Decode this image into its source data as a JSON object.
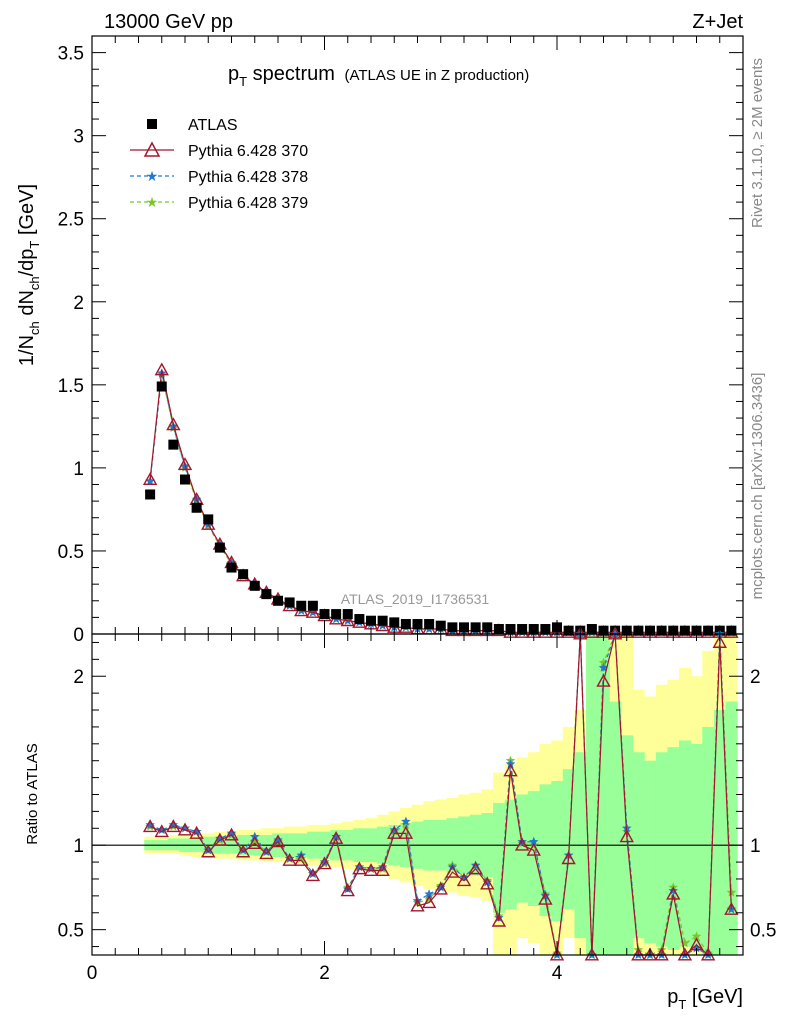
{
  "header": {
    "left": "13000 GeV pp",
    "right": "Z+Jet"
  },
  "title": {
    "main": "p",
    "main_sub": "T",
    "main_rest": " spectrum",
    "small": "(ATLAS UE in Z production)"
  },
  "side_text": {
    "top": "Rivet 3.1.10, ≥ 2M events",
    "bottom": "mcplots.cern.ch [arXiv:1306.3436]"
  },
  "watermark": "ATLAS_2019_I1736531",
  "ylabel_top": {
    "a": "1/N",
    "a_sub": "ch",
    "b": " dN",
    "b_sub": "ch",
    "c": "/dp",
    "c_sub": "T",
    "d": " [GeV]"
  },
  "ylabel_bottom": "Ratio to ATLAS",
  "xlabel": {
    "a": "p",
    "a_sub": "T",
    "b": " [GeV]"
  },
  "legend": [
    {
      "label": "ATLAS",
      "color": "#000000",
      "marker": "square"
    },
    {
      "label": "Pythia 6.428 370",
      "color": "#a3162e",
      "marker": "triangle-open"
    },
    {
      "label": "Pythia 6.428 378",
      "color": "#1f78d1",
      "marker": "star"
    },
    {
      "label": "Pythia 6.428 379",
      "color": "#7ac72b",
      "marker": "star"
    }
  ],
  "chart_data": {
    "type": "scatter",
    "x_range": [
      0,
      5.6
    ],
    "x_ticks": [
      "0",
      "2",
      "4"
    ],
    "top": {
      "ylim": [
        0,
        3.6
      ],
      "y_ticks": [
        "0",
        "0.5",
        "1",
        "1.5",
        "2",
        "2.5",
        "3",
        "3.5"
      ],
      "x": [
        0.5,
        0.6,
        0.7,
        0.8,
        0.9,
        1.0,
        1.1,
        1.2,
        1.3,
        1.4,
        1.5,
        1.6,
        1.7,
        1.8,
        1.9,
        2.0,
        2.1,
        2.2,
        2.3,
        2.4,
        2.5,
        2.6,
        2.7,
        2.8,
        2.9,
        3.0,
        3.1,
        3.2,
        3.3,
        3.4,
        3.5,
        3.6,
        3.7,
        3.8,
        3.9,
        4.0,
        4.1,
        4.2,
        4.3,
        4.4,
        4.5,
        4.6,
        4.7,
        4.8,
        4.9,
        5.0,
        5.1,
        5.2,
        5.3,
        5.4,
        5.5
      ],
      "atlas": [
        0.84,
        1.49,
        1.14,
        0.93,
        0.76,
        0.69,
        0.52,
        0.4,
        0.36,
        0.29,
        0.24,
        0.2,
        0.19,
        0.17,
        0.17,
        0.12,
        0.12,
        0.12,
        0.09,
        0.08,
        0.08,
        0.07,
        0.06,
        0.06,
        0.06,
        0.05,
        0.04,
        0.04,
        0.04,
        0.04,
        0.03,
        0.03,
        0.03,
        0.03,
        0.03,
        0.04,
        0.02,
        0.02,
        0.03,
        0.02,
        0.02,
        0.02,
        0.02,
        0.02,
        0.02,
        0.02,
        0.02,
        0.02,
        0.02,
        0.02,
        0.02
      ],
      "series": [
        {
          "name": "Pythia 6.428 370",
          "values": [
            0.93,
            1.59,
            1.26,
            1.02,
            0.81,
            0.66,
            0.54,
            0.43,
            0.35,
            0.3,
            0.25,
            0.21,
            0.17,
            0.14,
            0.13,
            0.11,
            0.09,
            0.08,
            0.07,
            0.06,
            0.05,
            0.04,
            0.04,
            0.03,
            0.03,
            0.03,
            0.02,
            0.02,
            0.02,
            0.02,
            0.02,
            0.01,
            0.01,
            0.01,
            0.01,
            0.01,
            0.01,
            0.01,
            0.01,
            0.01,
            0.01,
            0.01,
            0.01,
            0.01,
            0.01,
            0.01,
            0.01,
            0.01,
            0.01,
            0.01,
            0.01
          ]
        },
        {
          "name": "Pythia 6.428 378",
          "values": [
            0.92,
            1.57,
            1.25,
            1.01,
            0.81,
            0.66,
            0.54,
            0.43,
            0.35,
            0.3,
            0.25,
            0.21,
            0.17,
            0.14,
            0.13,
            0.11,
            0.09,
            0.08,
            0.07,
            0.06,
            0.05,
            0.04,
            0.04,
            0.03,
            0.03,
            0.03,
            0.02,
            0.02,
            0.02,
            0.02,
            0.02,
            0.01,
            0.01,
            0.01,
            0.01,
            0.01,
            0.01,
            0.01,
            0.01,
            0.01,
            0.01,
            0.01,
            0.01,
            0.01,
            0.01,
            0.01,
            0.01,
            0.01,
            0.01,
            0.01,
            0.01
          ]
        },
        {
          "name": "Pythia 6.428 379",
          "values": [
            0.92,
            1.56,
            1.24,
            1.0,
            0.8,
            0.65,
            0.53,
            0.42,
            0.35,
            0.29,
            0.25,
            0.21,
            0.17,
            0.14,
            0.13,
            0.11,
            0.09,
            0.08,
            0.07,
            0.06,
            0.05,
            0.04,
            0.04,
            0.03,
            0.03,
            0.03,
            0.02,
            0.02,
            0.02,
            0.02,
            0.02,
            0.01,
            0.01,
            0.01,
            0.01,
            0.01,
            0.01,
            0.01,
            0.01,
            0.01,
            0.01,
            0.01,
            0.01,
            0.01,
            0.01,
            0.01,
            0.01,
            0.01,
            0.01,
            0.01,
            0.01
          ]
        }
      ]
    },
    "ratio": {
      "ylim": [
        0.35,
        2.25
      ],
      "y_ticks": [
        "0.5",
        "1",
        "2"
      ],
      "y_tick_values": [
        0.5,
        1,
        2
      ],
      "band_outer": [
        [
          0.95,
          1.05
        ],
        [
          0.95,
          1.05
        ],
        [
          0.95,
          1.06
        ],
        [
          0.94,
          1.06
        ],
        [
          0.93,
          1.07
        ],
        [
          0.93,
          1.07
        ],
        [
          0.92,
          1.08
        ],
        [
          0.92,
          1.08
        ],
        [
          0.91,
          1.09
        ],
        [
          0.91,
          1.09
        ],
        [
          0.9,
          1.1
        ],
        [
          0.9,
          1.1
        ],
        [
          0.89,
          1.11
        ],
        [
          0.89,
          1.11
        ],
        [
          0.88,
          1.12
        ],
        [
          0.88,
          1.12
        ],
        [
          0.87,
          1.13
        ],
        [
          0.86,
          1.14
        ],
        [
          0.85,
          1.15
        ],
        [
          0.84,
          1.16
        ],
        [
          0.82,
          1.18
        ],
        [
          0.8,
          1.2
        ],
        [
          0.78,
          1.22
        ],
        [
          0.76,
          1.24
        ],
        [
          0.74,
          1.26
        ],
        [
          0.73,
          1.27
        ],
        [
          0.72,
          1.28
        ],
        [
          0.7,
          1.3
        ],
        [
          0.69,
          1.31
        ],
        [
          0.67,
          1.33
        ],
        [
          0.35,
          1.43
        ],
        [
          0.35,
          1.48
        ],
        [
          0.45,
          1.52
        ],
        [
          0.42,
          1.55
        ],
        [
          0.35,
          1.6
        ],
        [
          0.35,
          1.62
        ],
        [
          0.45,
          1.7
        ],
        [
          0.35,
          1.8
        ],
        [
          0.35,
          2.25
        ],
        [
          0.35,
          2.25
        ],
        [
          0.35,
          2.25
        ],
        [
          0.35,
          2.25
        ],
        [
          0.35,
          1.92
        ],
        [
          0.35,
          1.88
        ],
        [
          0.35,
          1.95
        ],
        [
          0.35,
          1.98
        ],
        [
          0.35,
          2.05
        ],
        [
          0.35,
          2.0
        ],
        [
          0.35,
          2.15
        ],
        [
          0.35,
          2.25
        ],
        [
          0.35,
          2.25
        ]
      ],
      "band_inner": [
        [
          0.97,
          1.03
        ],
        [
          0.97,
          1.03
        ],
        [
          0.97,
          1.04
        ],
        [
          0.96,
          1.04
        ],
        [
          0.96,
          1.04
        ],
        [
          0.95,
          1.05
        ],
        [
          0.95,
          1.05
        ],
        [
          0.95,
          1.05
        ],
        [
          0.94,
          1.06
        ],
        [
          0.94,
          1.06
        ],
        [
          0.94,
          1.06
        ],
        [
          0.93,
          1.07
        ],
        [
          0.93,
          1.07
        ],
        [
          0.93,
          1.07
        ],
        [
          0.92,
          1.08
        ],
        [
          0.92,
          1.08
        ],
        [
          0.91,
          1.09
        ],
        [
          0.91,
          1.09
        ],
        [
          0.9,
          1.1
        ],
        [
          0.9,
          1.1
        ],
        [
          0.89,
          1.11
        ],
        [
          0.88,
          1.12
        ],
        [
          0.87,
          1.13
        ],
        [
          0.86,
          1.14
        ],
        [
          0.85,
          1.15
        ],
        [
          0.85,
          1.15
        ],
        [
          0.84,
          1.16
        ],
        [
          0.83,
          1.17
        ],
        [
          0.82,
          1.18
        ],
        [
          0.81,
          1.19
        ],
        [
          0.6,
          1.25
        ],
        [
          0.62,
          1.27
        ],
        [
          0.66,
          1.3
        ],
        [
          0.64,
          1.32
        ],
        [
          0.58,
          1.36
        ],
        [
          0.55,
          1.38
        ],
        [
          0.62,
          1.45
        ],
        [
          0.45,
          1.55
        ],
        [
          0.35,
          2.25
        ],
        [
          0.35,
          2.25
        ],
        [
          0.35,
          1.85
        ],
        [
          0.35,
          1.65
        ],
        [
          0.45,
          1.55
        ],
        [
          0.42,
          1.5
        ],
        [
          0.4,
          1.55
        ],
        [
          0.38,
          1.58
        ],
        [
          0.4,
          1.62
        ],
        [
          0.38,
          1.6
        ],
        [
          0.35,
          1.7
        ],
        [
          0.35,
          1.8
        ],
        [
          0.35,
          1.85
        ]
      ],
      "series": [
        {
          "name": "Pythia 6.428 370",
          "values": [
            1.11,
            1.08,
            1.11,
            1.09,
            1.07,
            0.96,
            1.03,
            1.06,
            0.96,
            1.01,
            0.95,
            1.02,
            0.91,
            0.91,
            0.82,
            0.89,
            1.04,
            0.73,
            0.86,
            0.85,
            0.85,
            1.07,
            1.07,
            0.64,
            0.66,
            0.74,
            0.84,
            0.79,
            0.86,
            0.77,
            0.55,
            1.44,
            1.0,
            0.97,
            0.68,
            0.33,
            0.92,
            2.25,
            0.33,
            1.97,
            2.25,
            1.05,
            0.35,
            0.33,
            0.33,
            0.71,
            0.34,
            0.41,
            0.33,
            2.2,
            0.62
          ]
        },
        {
          "name": "Pythia 6.428 378",
          "values": [
            1.12,
            1.09,
            1.12,
            1.1,
            1.08,
            0.97,
            1.04,
            1.07,
            0.97,
            1.05,
            0.96,
            1.03,
            0.92,
            0.94,
            0.83,
            0.9,
            1.05,
            0.74,
            0.87,
            0.86,
            0.87,
            1.09,
            1.14,
            0.67,
            0.71,
            0.75,
            0.87,
            0.81,
            0.88,
            0.78,
            0.57,
            1.48,
            1.02,
            1.02,
            0.7,
            0.34,
            0.94,
            2.25,
            0.34,
            2.05,
            2.25,
            1.1,
            0.35,
            0.34,
            0.34,
            0.73,
            0.35,
            0.39,
            0.34,
            2.25,
            0.62
          ]
        },
        {
          "name": "Pythia 6.428 379",
          "values": [
            1.11,
            1.09,
            1.11,
            1.1,
            1.08,
            0.97,
            1.03,
            1.06,
            0.97,
            1.02,
            0.96,
            1.02,
            0.92,
            0.92,
            0.83,
            0.89,
            1.05,
            0.75,
            0.87,
            0.86,
            0.86,
            1.08,
            1.12,
            0.66,
            0.68,
            0.76,
            0.88,
            0.81,
            0.88,
            0.79,
            0.58,
            1.5,
            1.01,
            1.0,
            0.71,
            0.36,
            0.94,
            2.25,
            0.35,
            2.08,
            2.25,
            1.08,
            0.38,
            0.35,
            0.38,
            0.75,
            0.42,
            0.46,
            0.36,
            2.25,
            0.72
          ]
        }
      ]
    }
  }
}
